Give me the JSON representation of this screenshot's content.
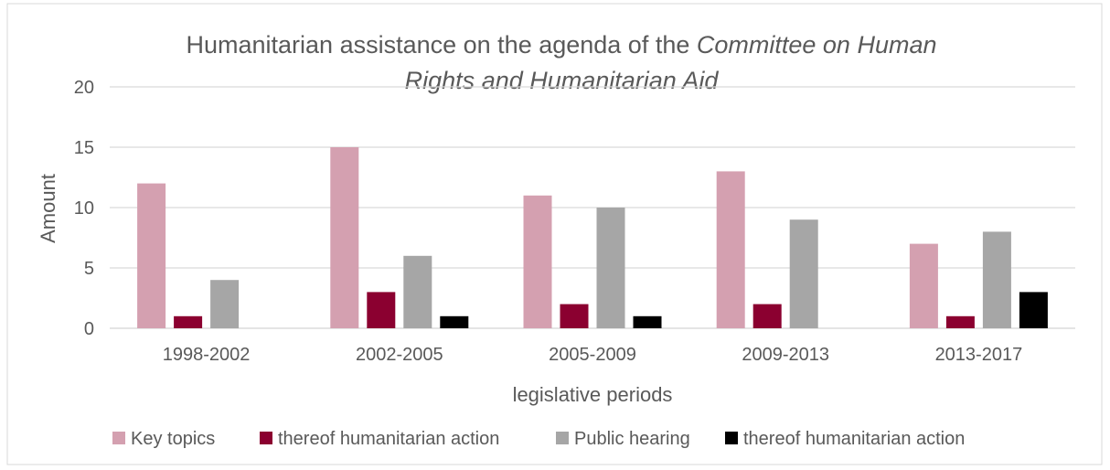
{
  "chart_data": {
    "type": "bar",
    "title": {
      "line1": "Humanitarian assistance on the agenda of the ",
      "line1_italic": "Committee on Human",
      "line2_italic": "Rights and Humanitarian Aid"
    },
    "xlabel": "legislative periods",
    "ylabel": "Amount",
    "ylim": [
      0,
      20
    ],
    "yticks": [
      "0",
      "5",
      "10",
      "15",
      "20"
    ],
    "categories": [
      "1998-2002",
      "2002-2005",
      "2005-2009",
      "2009-2013",
      "2013-2017"
    ],
    "series": [
      {
        "name": "Key topics",
        "color": "#d4a0b0",
        "values": [
          12,
          15,
          11,
          13,
          7
        ]
      },
      {
        "name": "thereof humanitarian action",
        "color": "#8b0030",
        "values": [
          1,
          3,
          2,
          2,
          1
        ]
      },
      {
        "name": "Public hearing",
        "color": "#a6a6a6",
        "values": [
          4,
          6,
          10,
          9,
          8
        ]
      },
      {
        "name": "thereof humanitarian action",
        "color": "#000000",
        "values": [
          0,
          1,
          1,
          0,
          3
        ]
      }
    ],
    "grid": true,
    "legend_position": "bottom"
  }
}
